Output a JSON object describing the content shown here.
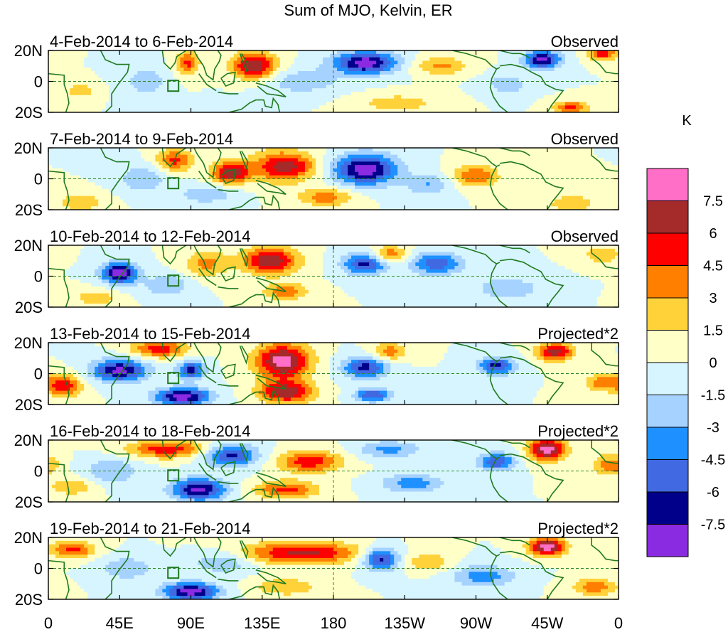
{
  "chart_data": {
    "type": "heatmap",
    "title": "Sum of MJO, Kelvin, ER",
    "units": "K",
    "latitude_ticks": [
      "20N",
      "0",
      "20S"
    ],
    "longitude_ticks": [
      "0",
      "45E",
      "90E",
      "135E",
      "180",
      "135W",
      "90W",
      "45W",
      "0"
    ],
    "panels": [
      {
        "period": "4-Feb-2014 to 6-Feb-2014",
        "kind": "Observed",
        "features": [
          {
            "lon": 200,
            "lat": 12,
            "value": -8.5,
            "sx": 14,
            "sy": 5
          },
          {
            "lon": 312,
            "lat": 14,
            "value": -8,
            "sx": 8,
            "sy": 4
          },
          {
            "lon": 130,
            "lat": 10,
            "value": 7.5,
            "sx": 10,
            "sy": 6
          },
          {
            "lon": 88,
            "lat": 12,
            "value": 5,
            "sx": 5,
            "sy": 5
          },
          {
            "lon": 248,
            "lat": 10,
            "value": 3.5,
            "sx": 12,
            "sy": 4
          },
          {
            "lon": 350,
            "lat": 18,
            "value": 6,
            "sx": 6,
            "sy": 3
          },
          {
            "lon": 330,
            "lat": -17,
            "value": 5,
            "sx": 8,
            "sy": 3
          },
          {
            "lon": 20,
            "lat": -6,
            "value": 3,
            "sx": 6,
            "sy": 3
          },
          {
            "lon": 62,
            "lat": 0,
            "value": -3,
            "sx": 8,
            "sy": 6
          },
          {
            "lon": 160,
            "lat": 0,
            "value": -2.5,
            "sx": 18,
            "sy": 6
          },
          {
            "lon": 220,
            "lat": -14,
            "value": 2.5,
            "sx": 18,
            "sy": 4
          },
          {
            "lon": 290,
            "lat": -2,
            "value": -2.5,
            "sx": 10,
            "sy": 5
          }
        ]
      },
      {
        "period": "7-Feb-2014 to 9-Feb-2014",
        "kind": "Observed",
        "features": [
          {
            "lon": 200,
            "lat": 6,
            "value": -8.5,
            "sx": 14,
            "sy": 7
          },
          {
            "lon": 148,
            "lat": 8,
            "value": 6.5,
            "sx": 14,
            "sy": 7
          },
          {
            "lon": 115,
            "lat": 4,
            "value": 7,
            "sx": 8,
            "sy": 5
          },
          {
            "lon": 80,
            "lat": 12,
            "value": 5,
            "sx": 8,
            "sy": 5
          },
          {
            "lon": 160,
            "lat": 8,
            "value": 1,
            "sx": 6,
            "sy": 3
          },
          {
            "lon": 270,
            "lat": 2,
            "value": 4.5,
            "sx": 10,
            "sy": 5
          },
          {
            "lon": 175,
            "lat": -12,
            "value": 4,
            "sx": 12,
            "sy": 4
          },
          {
            "lon": 60,
            "lat": 0,
            "value": -3,
            "sx": 10,
            "sy": 6
          },
          {
            "lon": 100,
            "lat": -10,
            "value": -3,
            "sx": 12,
            "sy": 4
          },
          {
            "lon": 20,
            "lat": -15,
            "value": 3,
            "sx": 10,
            "sy": 4
          },
          {
            "lon": 330,
            "lat": -16,
            "value": 3,
            "sx": 10,
            "sy": 4
          },
          {
            "lon": 240,
            "lat": -4,
            "value": -3,
            "sx": 10,
            "sy": 5
          }
        ]
      },
      {
        "period": "10-Feb-2014 to 12-Feb-2014",
        "kind": "Observed",
        "features": [
          {
            "lon": 45,
            "lat": 2,
            "value": -8.5,
            "sx": 8,
            "sy": 5
          },
          {
            "lon": 140,
            "lat": 10,
            "value": 7.5,
            "sx": 12,
            "sy": 6
          },
          {
            "lon": 200,
            "lat": 8,
            "value": -6.5,
            "sx": 10,
            "sy": 5
          },
          {
            "lon": 245,
            "lat": 8,
            "value": -5.5,
            "sx": 12,
            "sy": 5
          },
          {
            "lon": 215,
            "lat": 14,
            "value": 4.5,
            "sx": 8,
            "sy": 4
          },
          {
            "lon": 150,
            "lat": -10,
            "value": 4,
            "sx": 10,
            "sy": 4
          },
          {
            "lon": 100,
            "lat": 8,
            "value": 3.5,
            "sx": 10,
            "sy": 6
          },
          {
            "lon": 350,
            "lat": 14,
            "value": 3,
            "sx": 8,
            "sy": 4
          },
          {
            "lon": 75,
            "lat": -6,
            "value": -3,
            "sx": 10,
            "sy": 5
          },
          {
            "lon": 290,
            "lat": -8,
            "value": -3,
            "sx": 14,
            "sy": 5
          },
          {
            "lon": 30,
            "lat": -14,
            "value": 2.5,
            "sx": 10,
            "sy": 4
          }
        ]
      },
      {
        "period": "13-Feb-2014 to 15-Feb-2014",
        "kind": "Projected*2",
        "features": [
          {
            "lon": 148,
            "lat": 8,
            "value": 8.5,
            "sx": 12,
            "sy": 8
          },
          {
            "lon": 150,
            "lat": -12,
            "value": 7,
            "sx": 12,
            "sy": 5
          },
          {
            "lon": 45,
            "lat": 2,
            "value": -8,
            "sx": 12,
            "sy": 5
          },
          {
            "lon": 90,
            "lat": 2,
            "value": -7,
            "sx": 6,
            "sy": 4
          },
          {
            "lon": 85,
            "lat": -15,
            "value": -8.5,
            "sx": 12,
            "sy": 4
          },
          {
            "lon": 70,
            "lat": 16,
            "value": 5.5,
            "sx": 12,
            "sy": 4
          },
          {
            "lon": 10,
            "lat": -8,
            "value": 5.5,
            "sx": 8,
            "sy": 5
          },
          {
            "lon": 320,
            "lat": 14,
            "value": 7,
            "sx": 8,
            "sy": 4
          },
          {
            "lon": 200,
            "lat": 4,
            "value": -6.5,
            "sx": 10,
            "sy": 5
          },
          {
            "lon": 283,
            "lat": 5,
            "value": -6.5,
            "sx": 8,
            "sy": 4
          },
          {
            "lon": 215,
            "lat": 14,
            "value": 4,
            "sx": 8,
            "sy": 4
          },
          {
            "lon": 350,
            "lat": -6,
            "value": 4,
            "sx": 8,
            "sy": 4
          },
          {
            "lon": 205,
            "lat": -14,
            "value": -6,
            "sx": 8,
            "sy": 3
          }
        ]
      },
      {
        "period": "16-Feb-2014 to 18-Feb-2014",
        "kind": "Projected*2",
        "features": [
          {
            "lon": 75,
            "lat": 14,
            "value": 5.5,
            "sx": 18,
            "sy": 4
          },
          {
            "lon": 115,
            "lat": 10,
            "value": -6.5,
            "sx": 12,
            "sy": 5
          },
          {
            "lon": 165,
            "lat": 6,
            "value": 5.5,
            "sx": 14,
            "sy": 5
          },
          {
            "lon": 95,
            "lat": -12,
            "value": -8,
            "sx": 12,
            "sy": 5
          },
          {
            "lon": 150,
            "lat": -12,
            "value": 5,
            "sx": 14,
            "sy": 4
          },
          {
            "lon": 315,
            "lat": 14,
            "value": 8.5,
            "sx": 8,
            "sy": 5
          },
          {
            "lon": 283,
            "lat": 6,
            "value": -6,
            "sx": 8,
            "sy": 4
          },
          {
            "lon": 215,
            "lat": 14,
            "value": -3.5,
            "sx": 14,
            "sy": 4
          },
          {
            "lon": 230,
            "lat": -8,
            "value": -4,
            "sx": 14,
            "sy": 4
          },
          {
            "lon": 355,
            "lat": 4,
            "value": 4,
            "sx": 8,
            "sy": 5
          },
          {
            "lon": 40,
            "lat": 0,
            "value": -3,
            "sx": 12,
            "sy": 6
          },
          {
            "lon": 15,
            "lat": -10,
            "value": 3,
            "sx": 10,
            "sy": 4
          }
        ]
      },
      {
        "period": "19-Feb-2014 to 21-Feb-2014",
        "kind": "Projected*2",
        "features": [
          {
            "lon": 160,
            "lat": 10,
            "value": 6.5,
            "sx": 26,
            "sy": 5
          },
          {
            "lon": 210,
            "lat": 6,
            "value": -7,
            "sx": 8,
            "sy": 5
          },
          {
            "lon": 315,
            "lat": 14,
            "value": 8.5,
            "sx": 8,
            "sy": 4
          },
          {
            "lon": 90,
            "lat": -15,
            "value": -8.5,
            "sx": 12,
            "sy": 4
          },
          {
            "lon": 15,
            "lat": 12,
            "value": 5,
            "sx": 10,
            "sy": 4
          },
          {
            "lon": 275,
            "lat": -5,
            "value": -4,
            "sx": 14,
            "sy": 5
          },
          {
            "lon": 150,
            "lat": -12,
            "value": 3,
            "sx": 14,
            "sy": 4
          },
          {
            "lon": 240,
            "lat": 4,
            "value": 3,
            "sx": 10,
            "sy": 4
          },
          {
            "lon": 110,
            "lat": 4,
            "value": -3,
            "sx": 14,
            "sy": 5
          },
          {
            "lon": 345,
            "lat": -12,
            "value": 4,
            "sx": 10,
            "sy": 4
          },
          {
            "lon": 50,
            "lat": 0,
            "value": -3,
            "sx": 12,
            "sy": 5
          }
        ]
      }
    ],
    "colorbar": {
      "levels": [
        "7.5",
        "6",
        "4.5",
        "3",
        "1.5",
        "0",
        "-1.5",
        "-3",
        "-4.5",
        "-6",
        "-7.5"
      ],
      "thresholds": [
        7.5,
        6,
        4.5,
        3,
        1.5,
        0,
        -1.5,
        -3,
        -4.5,
        -6,
        -7.5
      ],
      "colors": [
        "#ff6ec7",
        "#a52a2a",
        "#ff0000",
        "#ff7f00",
        "#ffd23a",
        "#ffffc8",
        "#d7f5ff",
        "#a6d2ff",
        "#1e90ff",
        "#4169e1",
        "#00008b",
        "#8a2be2"
      ]
    },
    "equator_line_color": "#2a8a2a",
    "coast_color": "#1f7a1f"
  }
}
